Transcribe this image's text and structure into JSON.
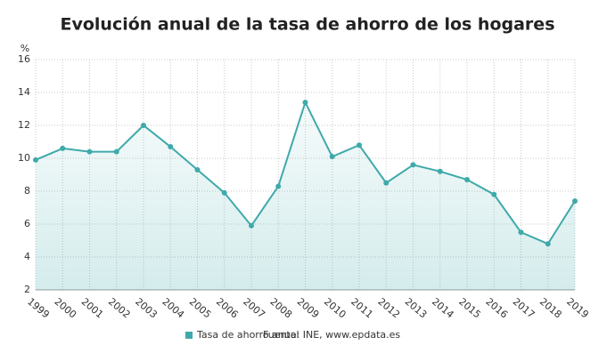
{
  "chart_data": {
    "type": "line",
    "title": "Evolución anual de la tasa de ahorro de los hogares",
    "y_label": "%",
    "categories": [
      "1999",
      "2000",
      "2001",
      "2002",
      "2003",
      "2004",
      "2005",
      "2006",
      "2007",
      "2008",
      "2009",
      "2010",
      "2011",
      "2012",
      "2013",
      "2014",
      "2015",
      "2016",
      "2017",
      "2018",
      "2019"
    ],
    "series": [
      {
        "name": "Tasa de ahorro anual",
        "color": "#3fa9aa",
        "values": [
          9.9,
          10.6,
          10.4,
          10.4,
          12.0,
          10.7,
          9.3,
          7.9,
          5.9,
          8.3,
          13.4,
          10.1,
          10.8,
          8.5,
          9.6,
          9.2,
          8.7,
          7.8,
          5.5,
          4.8,
          7.4
        ]
      }
    ],
    "source": "Fuente: INE, www.epdata.es",
    "ylim": [
      2,
      16
    ],
    "yticks": [
      2,
      4,
      6,
      8,
      10,
      12,
      14,
      16
    ],
    "grid": true,
    "area": true
  }
}
